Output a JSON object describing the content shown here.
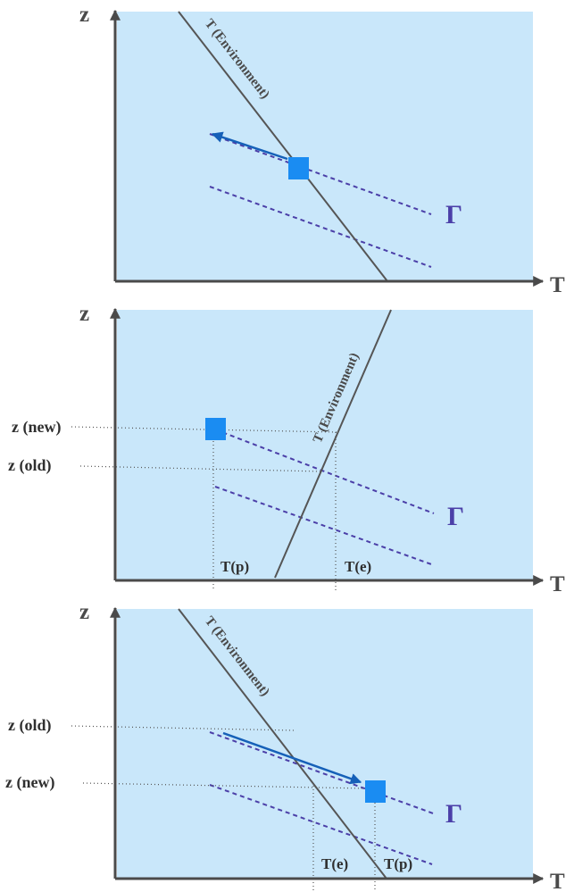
{
  "colors": {
    "panel_bg": "#c9e7fa",
    "axis": "#4a4a4a",
    "environment_line": "#555555",
    "gamma_dashed": "#4b3fa8",
    "parcel": "#1a8cf2",
    "arrow": "#1560b8",
    "guide_dotted": "#555555"
  },
  "panels": [
    {
      "id": "top",
      "axis_y_label": "z",
      "axis_x_label": "T",
      "environment_label": "T (Environment)",
      "gamma_label": "Γ",
      "z_new_label": "",
      "z_old_label": "",
      "tp_label": "",
      "te_label": ""
    },
    {
      "id": "middle",
      "axis_y_label": "z",
      "axis_x_label": "T",
      "environment_label": "T (Environment)",
      "gamma_label": "Γ",
      "z_new_label": "z (new)",
      "z_old_label": "z (old)",
      "tp_label": "T(p)",
      "te_label": "T(e)"
    },
    {
      "id": "bottom",
      "axis_y_label": "z",
      "axis_x_label": "T",
      "environment_label": "T (Environment)",
      "gamma_label": "Γ",
      "z_new_label": "z (new)",
      "z_old_label": "z (old)",
      "tp_label": "T(p)",
      "te_label": "T(e)"
    }
  ]
}
